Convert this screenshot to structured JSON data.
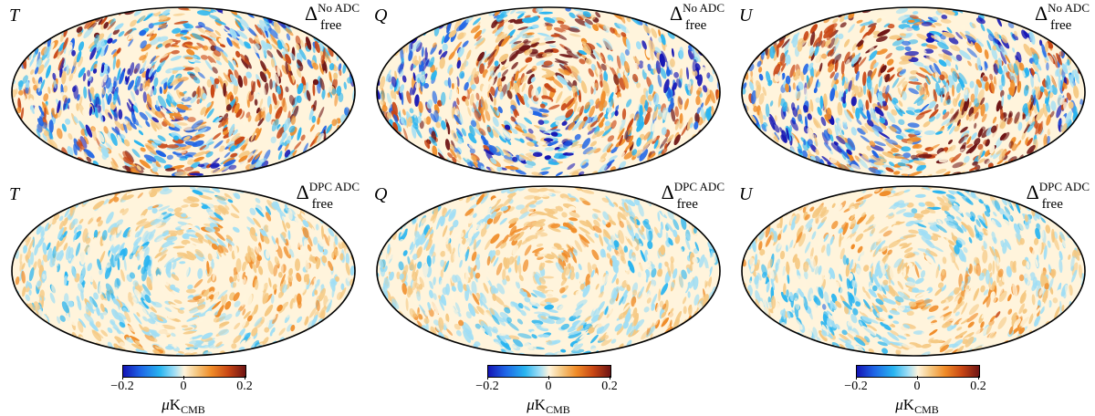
{
  "figure": {
    "rows": [
      {
        "id": "no-adc",
        "tag": {
          "delta": "Δ",
          "sup": "No ADC",
          "sub": "free"
        }
      },
      {
        "id": "dpc-adc",
        "tag": {
          "delta": "Δ",
          "sup": "DPC ADC",
          "sub": "free"
        }
      }
    ],
    "columns": [
      {
        "id": "t",
        "stokes": "T"
      },
      {
        "id": "q",
        "stokes": "Q"
      },
      {
        "id": "u",
        "stokes": "U"
      }
    ],
    "colorbar": {
      "ticks": [
        "−0.2",
        "0",
        "0.2"
      ],
      "tick_values": [
        -0.2,
        0,
        0.2
      ],
      "range": [
        -0.2,
        0.2
      ],
      "unit_symbol": "μ",
      "unit_main": "K",
      "unit_sub": "CMB"
    },
    "colormap": [
      "#1414b4",
      "#1e64e6",
      "#28b4f0",
      "#a0def5",
      "#fff4dc",
      "#f5c882",
      "#f08c28",
      "#c84614",
      "#6e1414"
    ],
    "amplitude": {
      "no-adc": 1.0,
      "dpc-adc": 0.45
    }
  }
}
